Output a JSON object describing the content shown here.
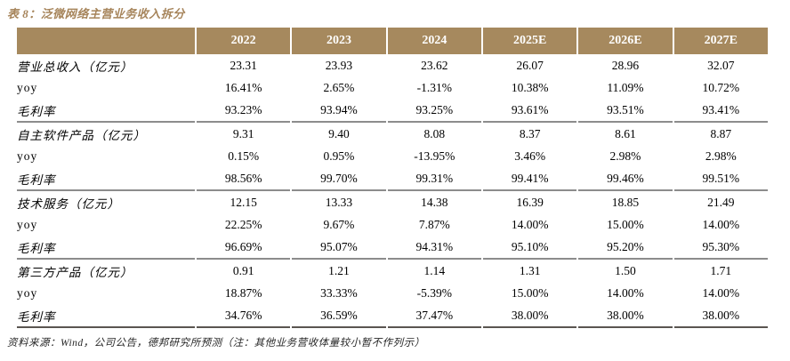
{
  "title": "表 8：泛微网络主营业务收入拆分",
  "colors": {
    "header_bg": "#A6895E",
    "header_text": "#FFFFFF",
    "title_text": "#A6845A",
    "separator": "#8C8C8C",
    "bottom_border": "#5A5550",
    "body_text": "#000000",
    "footer_text": "#262626"
  },
  "table": {
    "columns": [
      "",
      "2022",
      "2023",
      "2024",
      "2025E",
      "2026E",
      "2027E"
    ],
    "groups": [
      {
        "name": "营业总收入",
        "rows": [
          {
            "label": "营业总收入（亿元）",
            "values": [
              "23.31",
              "23.93",
              "23.62",
              "26.07",
              "28.96",
              "32.07"
            ]
          },
          {
            "label": "yoy",
            "values": [
              "16.41%",
              "2.65%",
              "-1.31%",
              "10.38%",
              "11.09%",
              "10.72%"
            ]
          },
          {
            "label": "毛利率",
            "values": [
              "93.23%",
              "93.94%",
              "93.25%",
              "93.61%",
              "93.51%",
              "93.41%"
            ]
          }
        ]
      },
      {
        "name": "自主软件产品",
        "rows": [
          {
            "label": "自主软件产品（亿元）",
            "values": [
              "9.31",
              "9.40",
              "8.08",
              "8.37",
              "8.61",
              "8.87"
            ]
          },
          {
            "label": "yoy",
            "values": [
              "0.15%",
              "0.95%",
              "-13.95%",
              "3.46%",
              "2.98%",
              "2.98%"
            ]
          },
          {
            "label": "毛利率",
            "values": [
              "98.56%",
              "99.70%",
              "99.31%",
              "99.41%",
              "99.46%",
              "99.51%"
            ]
          }
        ]
      },
      {
        "name": "技术服务",
        "rows": [
          {
            "label": "技术服务（亿元）",
            "values": [
              "12.15",
              "13.33",
              "14.38",
              "16.39",
              "18.85",
              "21.49"
            ]
          },
          {
            "label": "yoy",
            "values": [
              "22.25%",
              "9.67%",
              "7.87%",
              "14.00%",
              "15.00%",
              "14.00%"
            ]
          },
          {
            "label": "毛利率",
            "values": [
              "96.69%",
              "95.07%",
              "94.31%",
              "95.10%",
              "95.20%",
              "95.30%"
            ]
          }
        ]
      },
      {
        "name": "第三方产品",
        "rows": [
          {
            "label": "第三方产品（亿元）",
            "values": [
              "0.91",
              "1.21",
              "1.14",
              "1.31",
              "1.50",
              "1.71"
            ]
          },
          {
            "label": "yoy",
            "values": [
              "18.87%",
              "33.33%",
              "-5.39%",
              "15.00%",
              "14.00%",
              "14.00%"
            ]
          },
          {
            "label": "毛利率",
            "values": [
              "34.76%",
              "36.59%",
              "37.47%",
              "38.00%",
              "38.00%",
              "38.00%"
            ]
          }
        ]
      }
    ]
  },
  "footer": "资料来源：Wind，公司公告，德邦研究所预测（注：其他业务营收体量较小暂不作列示）"
}
